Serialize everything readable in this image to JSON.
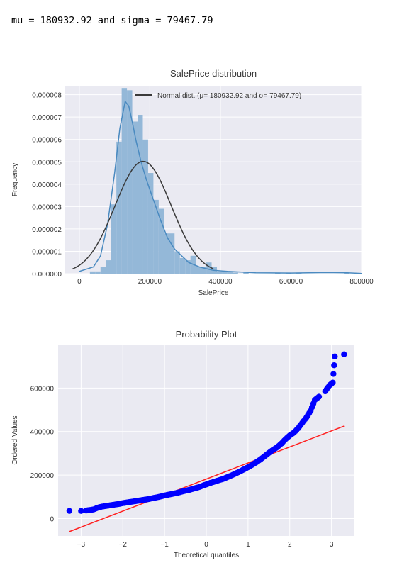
{
  "console_output": "mu = 180932.92 and sigma = 79467.79",
  "chart_data": [
    {
      "type": "histogram",
      "title": "SalePrice distribution",
      "xlabel": "SalePrice",
      "ylabel": "Frequency",
      "xlim": [
        -40000,
        800000
      ],
      "ylim": [
        0,
        8.4e-06
      ],
      "xticks": [
        0,
        200000,
        400000,
        600000,
        800000
      ],
      "yticks": [
        0,
        1e-06,
        2e-06,
        3e-06,
        4e-06,
        5e-06,
        6e-06,
        7e-06,
        8e-06
      ],
      "ytick_labels": [
        "0.000000",
        "0.000001",
        "0.000002",
        "0.000003",
        "0.000004",
        "0.000005",
        "0.000006",
        "0.000007",
        "0.000008"
      ],
      "xtick_labels": [
        "0",
        "200000",
        "400000",
        "600000",
        "800000"
      ],
      "bin_width": 15000,
      "bins": [
        {
          "x": 30000,
          "y": 1e-07
        },
        {
          "x": 45000,
          "y": 1e-07
        },
        {
          "x": 60000,
          "y": 3e-07
        },
        {
          "x": 75000,
          "y": 6e-07
        },
        {
          "x": 90000,
          "y": 3.1e-06
        },
        {
          "x": 105000,
          "y": 5.9e-06
        },
        {
          "x": 120000,
          "y": 8.3e-06
        },
        {
          "x": 135000,
          "y": 8.2e-06
        },
        {
          "x": 150000,
          "y": 6.8e-06
        },
        {
          "x": 165000,
          "y": 7.1e-06
        },
        {
          "x": 180000,
          "y": 6e-06
        },
        {
          "x": 195000,
          "y": 4.5e-06
        },
        {
          "x": 210000,
          "y": 3.3e-06
        },
        {
          "x": 225000,
          "y": 2.9e-06
        },
        {
          "x": 240000,
          "y": 1.8e-06
        },
        {
          "x": 255000,
          "y": 1.8e-06
        },
        {
          "x": 270000,
          "y": 1e-06
        },
        {
          "x": 285000,
          "y": 7e-07
        },
        {
          "x": 300000,
          "y": 6e-07
        },
        {
          "x": 315000,
          "y": 8e-07
        },
        {
          "x": 330000,
          "y": 3e-07
        },
        {
          "x": 345000,
          "y": 3e-07
        },
        {
          "x": 360000,
          "y": 5e-07
        },
        {
          "x": 375000,
          "y": 3e-07
        },
        {
          "x": 390000,
          "y": 1e-07
        },
        {
          "x": 405000,
          "y": 1e-07
        },
        {
          "x": 420000,
          "y": 1e-07
        },
        {
          "x": 435000,
          "y": 5e-08
        },
        {
          "x": 465000,
          "y": 5e-08
        },
        {
          "x": 555000,
          "y": 5e-08
        },
        {
          "x": 585000,
          "y": 5e-08
        },
        {
          "x": 615000,
          "y": 5e-08
        },
        {
          "x": 750000,
          "y": 5e-08
        }
      ],
      "normal_fit": {
        "mu": 180932.92,
        "sigma": 79467.79
      },
      "kde": {
        "x": [
          0,
          40000,
          60000,
          80000,
          100000,
          115000,
          130000,
          140000,
          150000,
          160000,
          175000,
          190000,
          210000,
          230000,
          250000,
          270000,
          290000,
          310000,
          340000,
          380000,
          420000,
          500000,
          600000,
          700000,
          760000,
          800000
        ],
        "y": [
          1e-07,
          3e-07,
          8e-07,
          2.2e-06,
          4.5e-06,
          6.5e-06,
          7.7e-06,
          7.5e-06,
          6.8e-06,
          6e-06,
          5e-06,
          4.2e-06,
          3.3e-06,
          2.4e-06,
          1.6e-06,
          1.1e-06,
          8e-07,
          5e-07,
          3e-07,
          1.5e-07,
          1e-07,
          4e-08,
          3e-08,
          5e-08,
          4e-08,
          1e-08
        ]
      },
      "legend_label": "Normal dist. ($\\mu=$ 180932.92 and $\\sigma=$ 79467.79)",
      "legend_display": "Normal dist. (μ=  180932.92 and σ=  79467.79)",
      "legend_position": "upper right",
      "colors": {
        "bars": "#94b8d8",
        "kde": "#4a8ac0",
        "normal": "#3a3a3a",
        "background": "#eaeaf2",
        "grid": "#ffffff"
      }
    },
    {
      "type": "scatter",
      "title": "Probability Plot",
      "xlabel": "Theoretical quantiles",
      "ylabel": "Ordered Values",
      "xlim": [
        -3.55,
        3.55
      ],
      "ylim": [
        -80000,
        800000
      ],
      "xticks": [
        -3,
        -2,
        -1,
        0,
        1,
        2,
        3
      ],
      "xtick_labels": [
        "−3",
        "−2",
        "−1",
        "0",
        "1",
        "2",
        "3"
      ],
      "yticks": [
        0,
        200000,
        400000,
        600000
      ],
      "ytick_labels": [
        "0",
        "200000",
        "400000",
        "600000"
      ],
      "points": [
        {
          "x": -3.28,
          "y": 35000
        },
        {
          "x": -3.0,
          "y": 35000
        },
        {
          "x": -2.88,
          "y": 37000
        },
        {
          "x": -2.8,
          "y": 39000
        },
        {
          "x": -2.7,
          "y": 42000
        },
        {
          "x": -2.6,
          "y": 50000
        },
        {
          "x": -2.5,
          "y": 55000
        },
        {
          "x": -2.4,
          "y": 58000
        },
        {
          "x": -2.3,
          "y": 61000
        },
        {
          "x": -2.2,
          "y": 64000
        },
        {
          "x": -2.1,
          "y": 67000
        },
        {
          "x": -2.0,
          "y": 71000
        },
        {
          "x": -1.9,
          "y": 74000
        },
        {
          "x": -1.8,
          "y": 77000
        },
        {
          "x": -1.7,
          "y": 80000
        },
        {
          "x": -1.6,
          "y": 83000
        },
        {
          "x": -1.5,
          "y": 86000
        },
        {
          "x": -1.4,
          "y": 89000
        },
        {
          "x": -1.3,
          "y": 93000
        },
        {
          "x": -1.2,
          "y": 97000
        },
        {
          "x": -1.1,
          "y": 101000
        },
        {
          "x": -1.0,
          "y": 106000
        },
        {
          "x": -0.9,
          "y": 110000
        },
        {
          "x": -0.8,
          "y": 114000
        },
        {
          "x": -0.7,
          "y": 118000
        },
        {
          "x": -0.6,
          "y": 123000
        },
        {
          "x": -0.5,
          "y": 128000
        },
        {
          "x": -0.4,
          "y": 132000
        },
        {
          "x": -0.3,
          "y": 138000
        },
        {
          "x": -0.2,
          "y": 143000
        },
        {
          "x": -0.1,
          "y": 150000
        },
        {
          "x": 0.0,
          "y": 157000
        },
        {
          "x": 0.1,
          "y": 164000
        },
        {
          "x": 0.2,
          "y": 170000
        },
        {
          "x": 0.3,
          "y": 176000
        },
        {
          "x": 0.4,
          "y": 182000
        },
        {
          "x": 0.5,
          "y": 190000
        },
        {
          "x": 0.6,
          "y": 198000
        },
        {
          "x": 0.7,
          "y": 207000
        },
        {
          "x": 0.8,
          "y": 216000
        },
        {
          "x": 0.9,
          "y": 226000
        },
        {
          "x": 1.0,
          "y": 236000
        },
        {
          "x": 1.1,
          "y": 247000
        },
        {
          "x": 1.2,
          "y": 259000
        },
        {
          "x": 1.3,
          "y": 272000
        },
        {
          "x": 1.4,
          "y": 287000
        },
        {
          "x": 1.5,
          "y": 302000
        },
        {
          "x": 1.6,
          "y": 316000
        },
        {
          "x": 1.7,
          "y": 328000
        },
        {
          "x": 1.8,
          "y": 345000
        },
        {
          "x": 1.9,
          "y": 365000
        },
        {
          "x": 2.0,
          "y": 382000
        },
        {
          "x": 2.1,
          "y": 395000
        },
        {
          "x": 2.2,
          "y": 415000
        },
        {
          "x": 2.3,
          "y": 440000
        },
        {
          "x": 2.4,
          "y": 465000
        },
        {
          "x": 2.5,
          "y": 495000
        },
        {
          "x": 2.6,
          "y": 545000
        },
        {
          "x": 2.7,
          "y": 560000
        },
        {
          "x": 2.85,
          "y": 585000
        },
        {
          "x": 2.95,
          "y": 612000
        },
        {
          "x": 3.03,
          "y": 625000
        },
        {
          "x": 3.08,
          "y": 745000
        },
        {
          "x": 3.3,
          "y": 755000
        }
      ],
      "fit_line": {
        "x": [
          -3.28,
          3.3
        ],
        "y": [
          -60000,
          425000
        ]
      },
      "colors": {
        "points": "#0000ff",
        "line": "#ff2020",
        "background": "#eaeaf2",
        "grid": "#ffffff"
      }
    }
  ]
}
